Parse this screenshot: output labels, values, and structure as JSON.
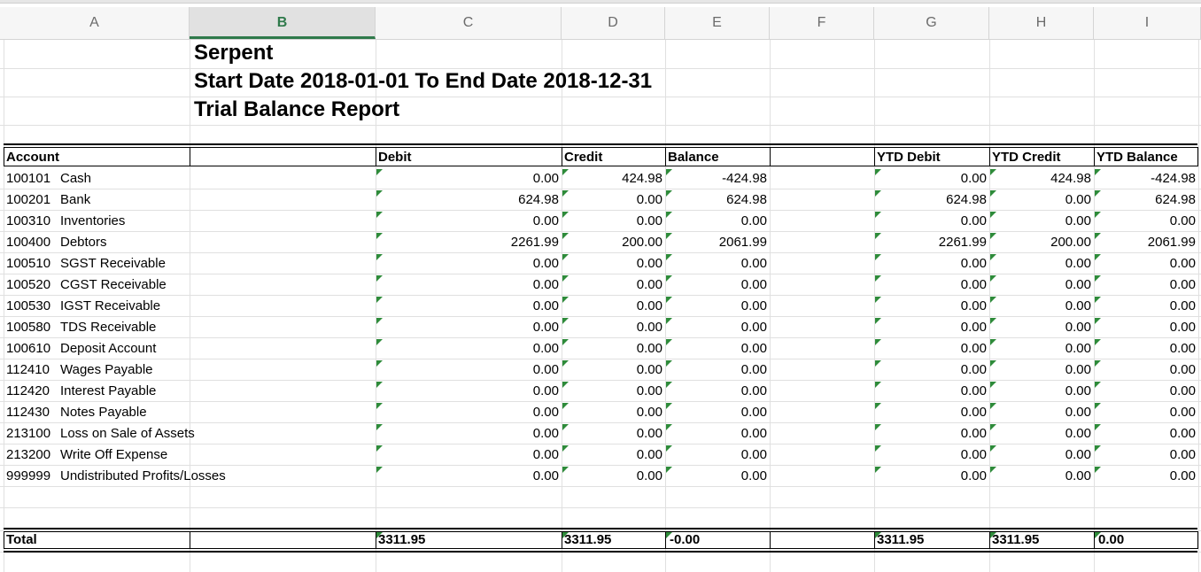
{
  "columns": [
    "A",
    "B",
    "C",
    "D",
    "E",
    "F",
    "G",
    "H",
    "I"
  ],
  "titles": {
    "company": "Serpent",
    "date_range": "Start Date 2018-01-01 To End Date 2018-12-31",
    "report_name": "Trial Balance Report"
  },
  "headers": {
    "account": "Account",
    "debit": "Debit",
    "credit": "Credit",
    "balance": "Balance",
    "ytd_debit": "YTD Debit",
    "ytd_credit": "YTD Credit",
    "ytd_balance": "YTD Balance"
  },
  "rows": [
    {
      "code": "100101",
      "name": "Cash",
      "debit": "0.00",
      "credit": "424.98",
      "balance": "-424.98",
      "ytd_debit": "0.00",
      "ytd_credit": "424.98",
      "ytd_balance": "-424.98"
    },
    {
      "code": "100201",
      "name": "Bank",
      "debit": "624.98",
      "credit": "0.00",
      "balance": "624.98",
      "ytd_debit": "624.98",
      "ytd_credit": "0.00",
      "ytd_balance": "624.98"
    },
    {
      "code": "100310",
      "name": "Inventories",
      "debit": "0.00",
      "credit": "0.00",
      "balance": "0.00",
      "ytd_debit": "0.00",
      "ytd_credit": "0.00",
      "ytd_balance": "0.00"
    },
    {
      "code": "100400",
      "name": "Debtors",
      "debit": "2261.99",
      "credit": "200.00",
      "balance": "2061.99",
      "ytd_debit": "2261.99",
      "ytd_credit": "200.00",
      "ytd_balance": "2061.99"
    },
    {
      "code": "100510",
      "name": "SGST Receivable",
      "debit": "0.00",
      "credit": "0.00",
      "balance": "0.00",
      "ytd_debit": "0.00",
      "ytd_credit": "0.00",
      "ytd_balance": "0.00"
    },
    {
      "code": "100520",
      "name": "CGST Receivable",
      "debit": "0.00",
      "credit": "0.00",
      "balance": "0.00",
      "ytd_debit": "0.00",
      "ytd_credit": "0.00",
      "ytd_balance": "0.00"
    },
    {
      "code": "100530",
      "name": "IGST Receivable",
      "debit": "0.00",
      "credit": "0.00",
      "balance": "0.00",
      "ytd_debit": "0.00",
      "ytd_credit": "0.00",
      "ytd_balance": "0.00"
    },
    {
      "code": "100580",
      "name": "TDS Receivable",
      "debit": "0.00",
      "credit": "0.00",
      "balance": "0.00",
      "ytd_debit": "0.00",
      "ytd_credit": "0.00",
      "ytd_balance": "0.00"
    },
    {
      "code": "100610",
      "name": "Deposit Account",
      "debit": "0.00",
      "credit": "0.00",
      "balance": "0.00",
      "ytd_debit": "0.00",
      "ytd_credit": "0.00",
      "ytd_balance": "0.00"
    },
    {
      "code": "112410",
      "name": "Wages Payable",
      "debit": "0.00",
      "credit": "0.00",
      "balance": "0.00",
      "ytd_debit": "0.00",
      "ytd_credit": "0.00",
      "ytd_balance": "0.00"
    },
    {
      "code": "112420",
      "name": "Interest Payable",
      "debit": "0.00",
      "credit": "0.00",
      "balance": "0.00",
      "ytd_debit": "0.00",
      "ytd_credit": "0.00",
      "ytd_balance": "0.00"
    },
    {
      "code": "112430",
      "name": "Notes Payable",
      "debit": "0.00",
      "credit": "0.00",
      "balance": "0.00",
      "ytd_debit": "0.00",
      "ytd_credit": "0.00",
      "ytd_balance": "0.00"
    },
    {
      "code": "213100",
      "name": "Loss on Sale of Assets",
      "debit": "0.00",
      "credit": "0.00",
      "balance": "0.00",
      "ytd_debit": "0.00",
      "ytd_credit": "0.00",
      "ytd_balance": "0.00"
    },
    {
      "code": "213200",
      "name": "Write Off Expense",
      "debit": "0.00",
      "credit": "0.00",
      "balance": "0.00",
      "ytd_debit": "0.00",
      "ytd_credit": "0.00",
      "ytd_balance": "0.00"
    },
    {
      "code": "999999",
      "name": "Undistributed Profits/Losses",
      "debit": "0.00",
      "credit": "0.00",
      "balance": "0.00",
      "ytd_debit": "0.00",
      "ytd_credit": "0.00",
      "ytd_balance": "0.00"
    }
  ],
  "total": {
    "label": "Total",
    "debit": "3311.95",
    "credit": "3311.95",
    "balance": "-0.00",
    "ytd_debit": "3311.95",
    "ytd_credit": "3311.95",
    "ytd_balance": "0.00"
  },
  "colors": {
    "selected_column": "#2f7a4b",
    "error_indicator": "#2e8b3a",
    "gridline": "#e0e0e0"
  }
}
